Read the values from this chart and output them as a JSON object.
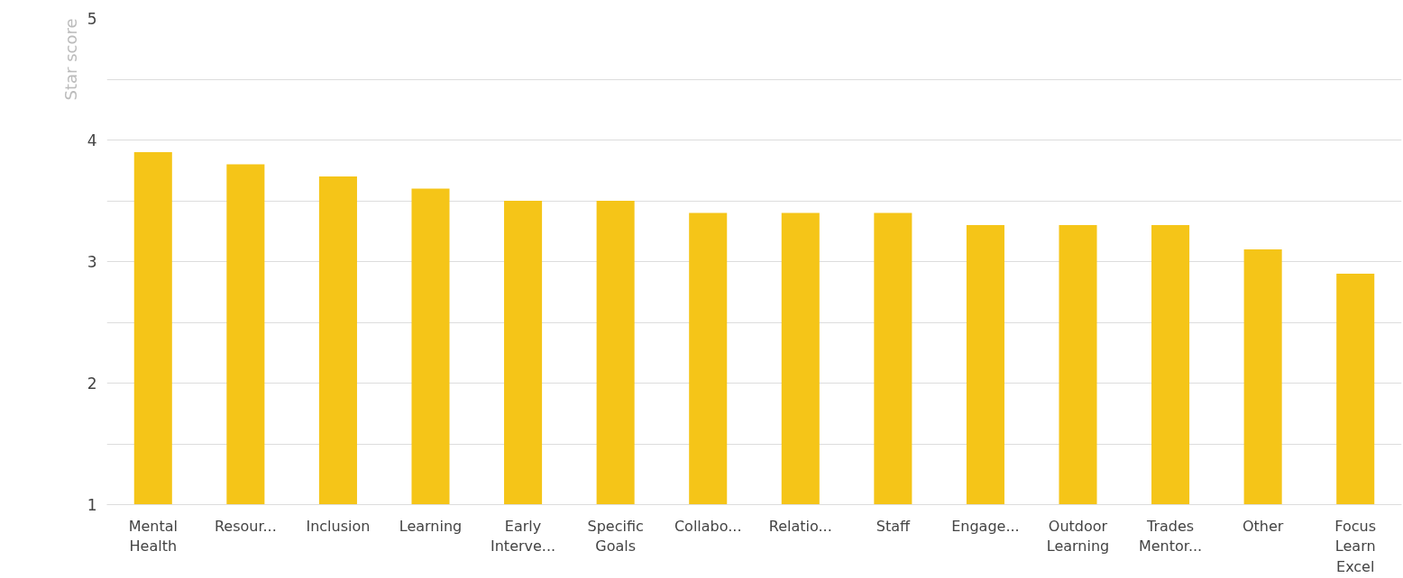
{
  "chart_data": {
    "type": "bar",
    "ylabel": "Star score",
    "categories": [
      "Mental Health",
      "Resour...",
      "Inclusion",
      "Learning",
      "Early Interve...",
      "Specific Goals",
      "Collabo...",
      "Relatio...",
      "Staff",
      "Engage...",
      "Outdoor Learning",
      "Trades Mentor...",
      "Other",
      "Focus Learn Excel"
    ],
    "values": [
      3.9,
      3.8,
      3.7,
      3.6,
      3.5,
      3.5,
      3.4,
      3.4,
      3.4,
      3.3,
      3.3,
      3.3,
      3.1,
      2.9
    ],
    "color": "#f5c518",
    "ylim": [
      1,
      5
    ],
    "yticks": [
      1,
      {
        "value": 1.5,
        "label": null
      },
      2,
      {
        "value": 2.5,
        "label": null
      },
      3,
      {
        "value": 3.5,
        "label": null
      },
      4,
      {
        "value": 4.5,
        "label": null
      },
      5
    ],
    "grid": "y"
  }
}
